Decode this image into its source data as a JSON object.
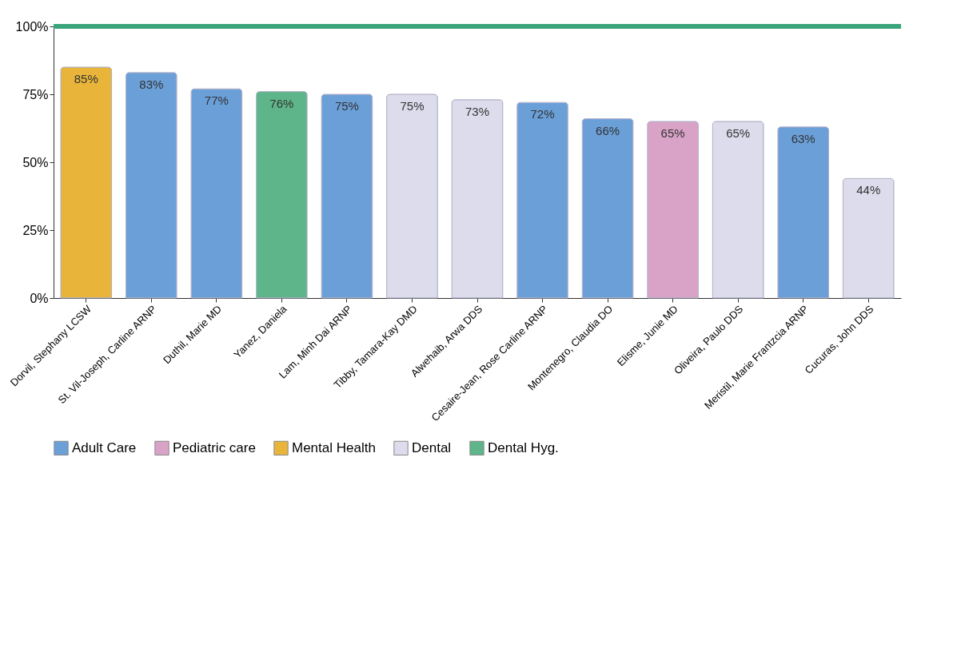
{
  "chart_data": {
    "type": "bar",
    "categories": [
      "Dorvil, Stephany LCSW",
      "St. Vil-Joseph, Carline ARNP",
      "Duthil, Marie MD",
      "Yanez, Daniela",
      "Lam, Minh Dai ARNP",
      "Tibby, Tamara-Kay DMD",
      "Alwehaib, Arwa DDS",
      "Cesaire-Jean, Rose Carline ARNP",
      "Montenegro, Claudia DO",
      "Elisme, Junie MD",
      "Oliveira, Paulo DDS",
      "Meristil, Marie Frantzcia ARNP",
      "Cucuras, John DDS"
    ],
    "series": [
      {
        "name": "Adult Care",
        "color": "#6a9fd8",
        "values": [
          null,
          83,
          77,
          null,
          75,
          null,
          null,
          72,
          66,
          null,
          null,
          63,
          null
        ]
      },
      {
        "name": "Pediatric care",
        "color": "#d9a3c8",
        "values": [
          null,
          null,
          null,
          null,
          null,
          null,
          null,
          null,
          null,
          65,
          null,
          null,
          null
        ]
      },
      {
        "name": "Mental Health",
        "color": "#e8b53a",
        "values": [
          85,
          null,
          null,
          null,
          null,
          null,
          null,
          null,
          null,
          null,
          null,
          null,
          null
        ]
      },
      {
        "name": "Dental",
        "color": "#dcdcec",
        "values": [
          null,
          null,
          null,
          null,
          null,
          75,
          73,
          null,
          null,
          null,
          65,
          null,
          44
        ]
      },
      {
        "name": "Dental Hyg.",
        "color": "#5fb58a",
        "values": [
          null,
          null,
          null,
          76,
          null,
          null,
          null,
          null,
          null,
          null,
          null,
          null,
          null
        ]
      }
    ],
    "value_labels": [
      "85%",
      "83%",
      "77%",
      "76%",
      "75%",
      "75%",
      "73%",
      "72%",
      "66%",
      "65%",
      "65%",
      "63%",
      "44%"
    ],
    "ylim": [
      0,
      100
    ],
    "yticks": [
      {
        "value": 0,
        "label": "0%"
      },
      {
        "value": 25,
        "label": "25%"
      },
      {
        "value": 50,
        "label": "50%"
      },
      {
        "value": 75,
        "label": "75%"
      },
      {
        "value": 100,
        "label": "100%"
      }
    ],
    "ref_lines": [
      {
        "axis": "y",
        "value": 100,
        "color": "#3aa57a"
      }
    ],
    "grid": false,
    "legend": "bottom"
  }
}
